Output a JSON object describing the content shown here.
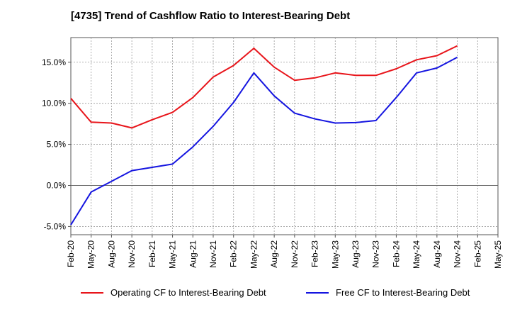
{
  "chart_data": {
    "type": "line",
    "title": "[4735]  Trend of Cashflow Ratio to Interest-Bearing Debt",
    "xlabel": "",
    "ylabel": "",
    "x": [
      "Feb-20",
      "May-20",
      "Aug-20",
      "Nov-20",
      "Feb-21",
      "May-21",
      "Aug-21",
      "Nov-21",
      "Feb-22",
      "May-22",
      "Aug-22",
      "Nov-22",
      "Feb-23",
      "May-23",
      "Aug-23",
      "Nov-23",
      "Feb-24",
      "May-24",
      "Aug-24",
      "Nov-24",
      "Feb-25",
      "May-25"
    ],
    "ylim": [
      -6,
      18
    ],
    "yticks": [
      -5,
      0,
      5,
      10,
      15
    ],
    "ytick_labels": [
      "-5.0%",
      "0.0%",
      "5.0%",
      "10.0%",
      "15.0%"
    ],
    "grid": true,
    "legend_position": "bottom",
    "series": [
      {
        "name": "Operating CF to Interest-Bearing Debt",
        "color": "#e8151b",
        "values": [
          10.6,
          7.7,
          7.6,
          7.0,
          8.0,
          8.9,
          10.7,
          13.2,
          14.6,
          16.7,
          14.4,
          12.8,
          13.1,
          13.7,
          13.4,
          13.4,
          14.2,
          15.3,
          15.8,
          17.0,
          null,
          null
        ]
      },
      {
        "name": "Free CF to Interest-Bearing Debt",
        "color": "#1515e0",
        "values": [
          -4.8,
          -0.8,
          0.5,
          1.8,
          2.2,
          2.6,
          4.7,
          7.2,
          10.1,
          13.7,
          10.9,
          8.8,
          8.1,
          7.6,
          7.65,
          7.9,
          10.7,
          13.7,
          14.3,
          15.6,
          null,
          null
        ]
      }
    ]
  }
}
